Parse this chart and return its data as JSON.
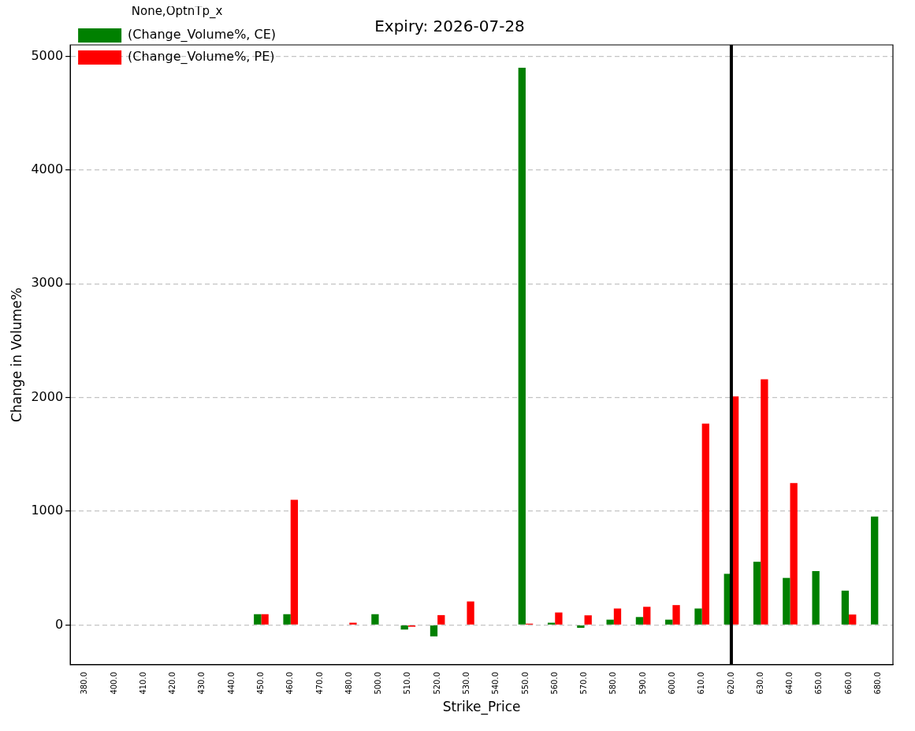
{
  "chart_data": {
    "type": "bar",
    "title": "Expiry: 2026-07-28",
    "xlabel": "Strike_Price",
    "ylabel": "Change in Volume%",
    "legend_title": "None,OptnTp_x",
    "categories": [
      "380.0",
      "400.0",
      "410.0",
      "420.0",
      "430.0",
      "440.0",
      "450.0",
      "460.0",
      "470.0",
      "480.0",
      "500.0",
      "510.0",
      "520.0",
      "530.0",
      "540.0",
      "550.0",
      "560.0",
      "570.0",
      "580.0",
      "590.0",
      "600.0",
      "610.0",
      "620.0",
      "630.0",
      "640.0",
      "650.0",
      "660.0",
      "680.0"
    ],
    "series": [
      {
        "name": "(Change_Volume%, CE)",
        "color": "#008000",
        "values": [
          null,
          null,
          null,
          null,
          null,
          null,
          95,
          95,
          null,
          null,
          95,
          -40,
          -100,
          null,
          null,
          4900,
          20,
          -25,
          47,
          70,
          47,
          145,
          450,
          556,
          414,
          474,
          302,
          953
        ]
      },
      {
        "name": "(Change_Volume%, PE)",
        "color": "#ff0000",
        "values": [
          null,
          null,
          null,
          null,
          null,
          null,
          95,
          1100,
          null,
          20,
          null,
          -15,
          87,
          207,
          null,
          12,
          110,
          85,
          145,
          160,
          175,
          1770,
          2010,
          2160,
          1247,
          null,
          92,
          null
        ]
      }
    ],
    "ylim": [
      -350,
      5100
    ],
    "yticks": [
      0,
      1000,
      2000,
      3000,
      4000,
      5000
    ],
    "grid": "y",
    "legend": "top left",
    "ref_lines": [
      {
        "axis": "x",
        "value": "620.0",
        "color": "#000000"
      }
    ]
  }
}
